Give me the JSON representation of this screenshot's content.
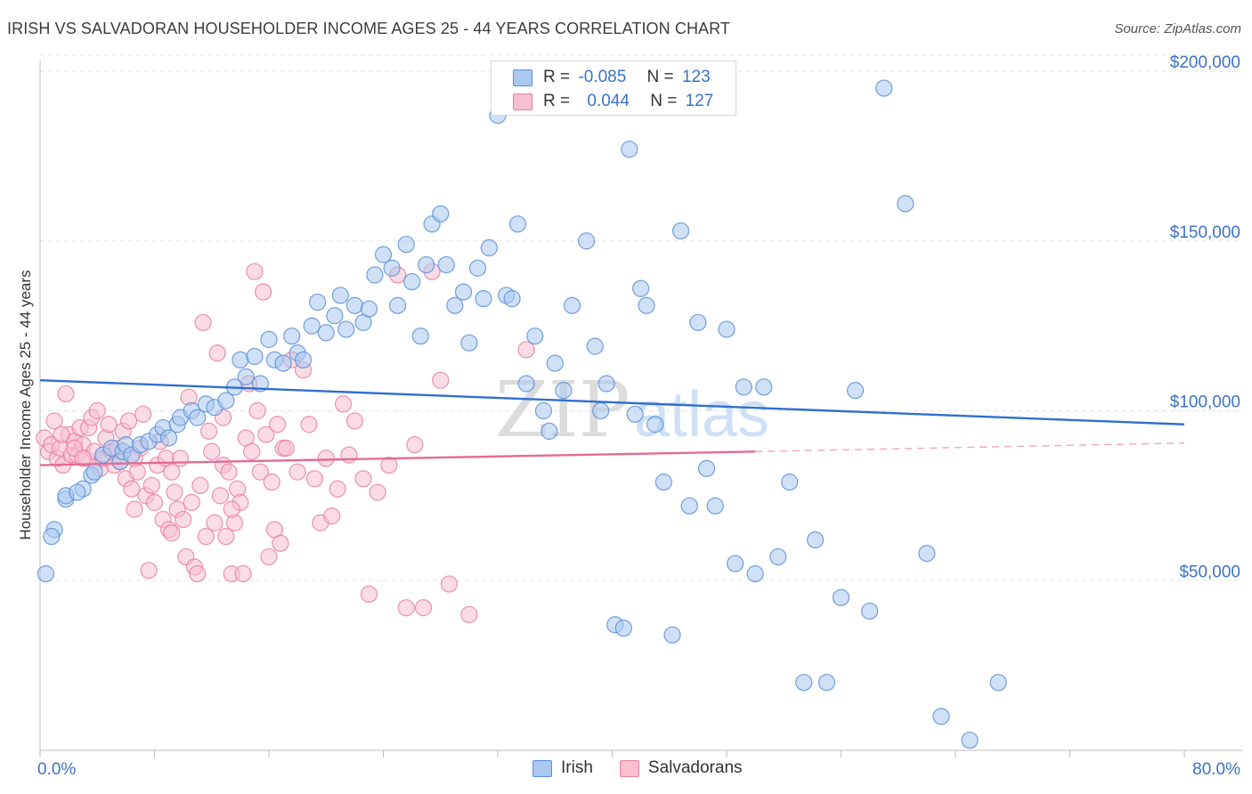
{
  "header": {
    "title": "IRISH VS SALVADORAN HOUSEHOLDER INCOME AGES 25 - 44 YEARS CORRELATION CHART",
    "source": "Source: ZipAtlas.com"
  },
  "legend": {
    "rows": [
      {
        "r_label": "R =",
        "r_value": "-0.085",
        "n_label": "N =",
        "n_value": "123"
      },
      {
        "r_label": "R =",
        "r_value": "0.044",
        "n_label": "N =",
        "n_value": "127"
      }
    ]
  },
  "bottom_legend": {
    "irish": "Irish",
    "salvadorans": "Salvadorans"
  },
  "watermark": {
    "zip": "ZIP",
    "atlas": "atlas"
  },
  "colors": {
    "irish_fill": "#aac8f0",
    "irish_stroke": "#5b8fd6",
    "irish_line": "#2f6fce",
    "salv_fill": "#f7bfd0",
    "salv_stroke": "#e87fa2",
    "salv_line": "#e46a95",
    "axis_label": "#3a73c7",
    "grid": "#e3e3e3"
  },
  "chart_data": {
    "type": "scatter",
    "title": "IRISH VS SALVADORAN HOUSEHOLDER INCOME AGES 25 - 44 YEARS CORRELATION CHART",
    "xlabel": "",
    "ylabel": "Householder Income Ages 25 - 44 years",
    "xlim": [
      0,
      80
    ],
    "ylim": [
      0,
      200000
    ],
    "x_tick_labels": [
      "0.0%",
      "80.0%"
    ],
    "y_ticks": [
      50000,
      100000,
      150000,
      200000
    ],
    "y_tick_labels": [
      "$50,000",
      "$100,000",
      "$150,000",
      "$200,000"
    ],
    "grid": true,
    "legend_position": "top-center",
    "series": [
      {
        "name": "Irish",
        "r": -0.085,
        "n": 123,
        "trend": {
          "x": [
            0,
            80
          ],
          "y": [
            109000,
            96000
          ]
        },
        "points": [
          [
            0.4,
            52000
          ],
          [
            1.0,
            65000
          ],
          [
            0.8,
            63000
          ],
          [
            1.8,
            74000
          ],
          [
            1.8,
            75000
          ],
          [
            3.0,
            77000
          ],
          [
            2.6,
            76000
          ],
          [
            3.6,
            81000
          ],
          [
            3.8,
            82000
          ],
          [
            4.4,
            87000
          ],
          [
            5.0,
            89000
          ],
          [
            5.6,
            85000
          ],
          [
            5.8,
            88000
          ],
          [
            6.0,
            90000
          ],
          [
            6.4,
            87000
          ],
          [
            7.0,
            90000
          ],
          [
            7.6,
            91000
          ],
          [
            8.2,
            93000
          ],
          [
            8.6,
            95000
          ],
          [
            9.0,
            92000
          ],
          [
            9.6,
            96000
          ],
          [
            9.8,
            98000
          ],
          [
            10.6,
            100000
          ],
          [
            11.0,
            98000
          ],
          [
            11.6,
            102000
          ],
          [
            12.2,
            101000
          ],
          [
            13.0,
            103000
          ],
          [
            13.6,
            107000
          ],
          [
            14.0,
            115000
          ],
          [
            14.4,
            110000
          ],
          [
            15.0,
            116000
          ],
          [
            15.4,
            108000
          ],
          [
            16.0,
            121000
          ],
          [
            16.4,
            115000
          ],
          [
            17.0,
            114000
          ],
          [
            17.6,
            122000
          ],
          [
            18.0,
            117000
          ],
          [
            18.4,
            115000
          ],
          [
            19.0,
            125000
          ],
          [
            19.4,
            132000
          ],
          [
            20.0,
            123000
          ],
          [
            20.6,
            128000
          ],
          [
            21.0,
            134000
          ],
          [
            21.4,
            124000
          ],
          [
            22.0,
            131000
          ],
          [
            22.6,
            126000
          ],
          [
            23.0,
            130000
          ],
          [
            23.4,
            140000
          ],
          [
            24.0,
            146000
          ],
          [
            24.6,
            142000
          ],
          [
            25.0,
            131000
          ],
          [
            25.6,
            149000
          ],
          [
            26.0,
            138000
          ],
          [
            26.6,
            122000
          ],
          [
            27.0,
            143000
          ],
          [
            27.4,
            155000
          ],
          [
            28.0,
            158000
          ],
          [
            28.4,
            143000
          ],
          [
            29.0,
            131000
          ],
          [
            29.6,
            135000
          ],
          [
            30.0,
            120000
          ],
          [
            30.6,
            142000
          ],
          [
            31.0,
            133000
          ],
          [
            31.4,
            148000
          ],
          [
            32.0,
            187000
          ],
          [
            32.6,
            134000
          ],
          [
            33.0,
            133000
          ],
          [
            33.4,
            155000
          ],
          [
            34.0,
            108000
          ],
          [
            34.6,
            122000
          ],
          [
            35.2,
            100000
          ],
          [
            35.6,
            94000
          ],
          [
            36.0,
            114000
          ],
          [
            36.6,
            106000
          ],
          [
            37.2,
            131000
          ],
          [
            37.6,
            192000
          ],
          [
            38.2,
            150000
          ],
          [
            38.8,
            119000
          ],
          [
            39.2,
            100000
          ],
          [
            39.6,
            108000
          ],
          [
            40.2,
            37000
          ],
          [
            40.8,
            36000
          ],
          [
            41.2,
            177000
          ],
          [
            41.6,
            99000
          ],
          [
            42.0,
            136000
          ],
          [
            42.4,
            131000
          ],
          [
            43.0,
            96000
          ],
          [
            43.6,
            79000
          ],
          [
            44.2,
            34000
          ],
          [
            44.8,
            153000
          ],
          [
            45.4,
            72000
          ],
          [
            46.0,
            126000
          ],
          [
            46.6,
            83000
          ],
          [
            47.2,
            72000
          ],
          [
            48.0,
            124000
          ],
          [
            48.6,
            55000
          ],
          [
            49.2,
            107000
          ],
          [
            50.0,
            52000
          ],
          [
            50.6,
            107000
          ],
          [
            51.6,
            57000
          ],
          [
            52.4,
            79000
          ],
          [
            53.4,
            20000
          ],
          [
            54.2,
            62000
          ],
          [
            55.0,
            20000
          ],
          [
            56.0,
            45000
          ],
          [
            57.0,
            106000
          ],
          [
            58.0,
            41000
          ],
          [
            59.0,
            195000
          ],
          [
            62.0,
            58000
          ],
          [
            63.0,
            10000
          ],
          [
            65.0,
            3000
          ],
          [
            67.0,
            20000
          ],
          [
            60.5,
            161000
          ]
        ]
      },
      {
        "name": "Salvadorans",
        "r": 0.044,
        "n": 127,
        "trend": {
          "x": [
            0,
            50
          ],
          "y": [
            84000,
            88000
          ]
        },
        "trend_dashed": {
          "x": [
            50,
            80
          ],
          "y": [
            88000,
            90500
          ]
        },
        "points": [
          [
            0.3,
            92000
          ],
          [
            0.6,
            88000
          ],
          [
            0.8,
            90000
          ],
          [
            1.0,
            97000
          ],
          [
            1.2,
            86000
          ],
          [
            1.4,
            89000
          ],
          [
            1.6,
            84000
          ],
          [
            1.8,
            105000
          ],
          [
            2.0,
            93000
          ],
          [
            2.2,
            87000
          ],
          [
            2.4,
            91000
          ],
          [
            2.6,
            87000
          ],
          [
            2.8,
            95000
          ],
          [
            3.0,
            90000
          ],
          [
            3.2,
            86000
          ],
          [
            3.4,
            95000
          ],
          [
            3.6,
            98000
          ],
          [
            3.8,
            88000
          ],
          [
            4.0,
            100000
          ],
          [
            4.2,
            83000
          ],
          [
            4.4,
            86000
          ],
          [
            4.6,
            92000
          ],
          [
            4.8,
            96000
          ],
          [
            5.0,
            88000
          ],
          [
            5.2,
            84000
          ],
          [
            5.4,
            89000
          ],
          [
            5.6,
            85000
          ],
          [
            5.8,
            94000
          ],
          [
            6.0,
            80000
          ],
          [
            6.2,
            97000
          ],
          [
            6.4,
            77000
          ],
          [
            6.6,
            71000
          ],
          [
            6.8,
            82000
          ],
          [
            7.0,
            89000
          ],
          [
            7.2,
            99000
          ],
          [
            7.4,
            75000
          ],
          [
            7.6,
            53000
          ],
          [
            7.8,
            78000
          ],
          [
            8.0,
            73000
          ],
          [
            8.2,
            84000
          ],
          [
            8.4,
            91000
          ],
          [
            8.6,
            68000
          ],
          [
            8.8,
            86000
          ],
          [
            9.0,
            65000
          ],
          [
            9.2,
            64000
          ],
          [
            9.4,
            76000
          ],
          [
            9.6,
            71000
          ],
          [
            9.8,
            86000
          ],
          [
            10.0,
            68000
          ],
          [
            10.2,
            57000
          ],
          [
            10.4,
            104000
          ],
          [
            10.6,
            73000
          ],
          [
            10.8,
            54000
          ],
          [
            11.0,
            52000
          ],
          [
            11.2,
            78000
          ],
          [
            11.4,
            126000
          ],
          [
            11.6,
            63000
          ],
          [
            11.8,
            94000
          ],
          [
            12.0,
            88000
          ],
          [
            12.2,
            67000
          ],
          [
            12.4,
            117000
          ],
          [
            12.6,
            75000
          ],
          [
            12.8,
            84000
          ],
          [
            13.0,
            63000
          ],
          [
            13.2,
            82000
          ],
          [
            13.4,
            52000
          ],
          [
            13.6,
            67000
          ],
          [
            13.8,
            77000
          ],
          [
            14.0,
            73000
          ],
          [
            14.2,
            52000
          ],
          [
            14.4,
            92000
          ],
          [
            14.6,
            108000
          ],
          [
            14.8,
            88000
          ],
          [
            15.0,
            141000
          ],
          [
            15.2,
            100000
          ],
          [
            15.4,
            82000
          ],
          [
            15.6,
            135000
          ],
          [
            15.8,
            93000
          ],
          [
            16.0,
            57000
          ],
          [
            16.2,
            79000
          ],
          [
            16.4,
            65000
          ],
          [
            16.6,
            96000
          ],
          [
            16.8,
            61000
          ],
          [
            17.0,
            89000
          ],
          [
            17.2,
            89000
          ],
          [
            17.6,
            115000
          ],
          [
            18.0,
            82000
          ],
          [
            18.4,
            112000
          ],
          [
            18.8,
            96000
          ],
          [
            19.2,
            80000
          ],
          [
            19.6,
            67000
          ],
          [
            20.0,
            86000
          ],
          [
            20.4,
            69000
          ],
          [
            20.8,
            77000
          ],
          [
            21.2,
            102000
          ],
          [
            21.6,
            87000
          ],
          [
            22.0,
            97000
          ],
          [
            22.6,
            80000
          ],
          [
            23.0,
            46000
          ],
          [
            23.6,
            76000
          ],
          [
            24.4,
            84000
          ],
          [
            25.0,
            140000
          ],
          [
            25.6,
            42000
          ],
          [
            26.2,
            90000
          ],
          [
            26.8,
            42000
          ],
          [
            27.4,
            141000
          ],
          [
            28.0,
            109000
          ],
          [
            28.6,
            49000
          ],
          [
            30.0,
            40000
          ],
          [
            34.0,
            118000
          ],
          [
            2.4,
            89000
          ],
          [
            3.0,
            86000
          ],
          [
            1.5,
            93000
          ],
          [
            12.8,
            98000
          ],
          [
            13.4,
            71000
          ],
          [
            6.6,
            86000
          ],
          [
            9.2,
            82000
          ]
        ]
      }
    ]
  }
}
